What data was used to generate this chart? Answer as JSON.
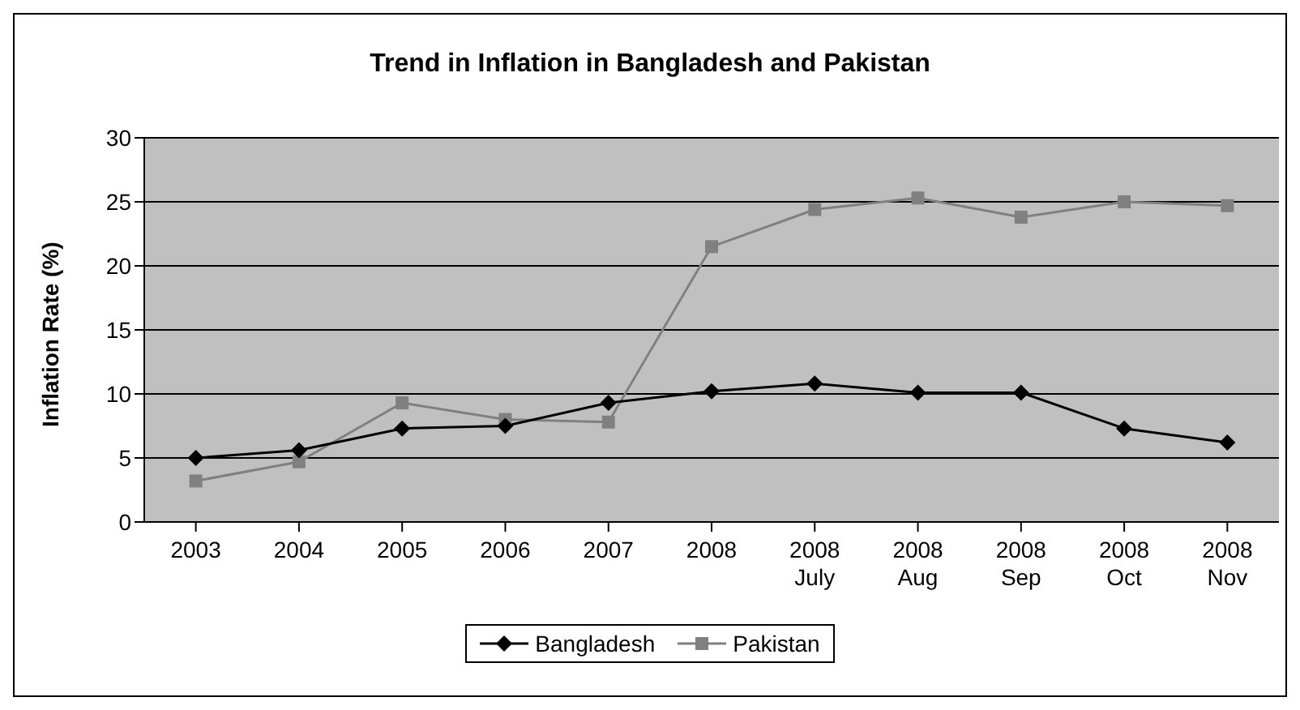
{
  "chart_data": {
    "type": "line",
    "title": "Trend in Inflation in Bangladesh and Pakistan",
    "ylabel": "Inflation Rate (%)",
    "categories": [
      "2003",
      "2004",
      "2005",
      "2006",
      "2007",
      "2008",
      "2008 July",
      "2008 Aug",
      "2008 Sep",
      "2008 Oct",
      "2008 Nov"
    ],
    "series": [
      {
        "name": "Bangladesh",
        "color": "#000000",
        "marker": "diamond",
        "values": [
          5.0,
          5.6,
          7.3,
          7.5,
          9.3,
          10.2,
          10.8,
          10.1,
          10.1,
          7.3,
          6.2
        ]
      },
      {
        "name": "Pakistan",
        "color": "#808080",
        "marker": "square",
        "values": [
          3.2,
          4.7,
          9.3,
          8.0,
          7.8,
          21.5,
          24.4,
          25.3,
          23.8,
          25.0,
          24.7
        ]
      }
    ],
    "ylim": [
      0,
      30
    ],
    "yticks": [
      0,
      5,
      10,
      15,
      20,
      25,
      30
    ],
    "grid": "y",
    "legend": "bottom"
  }
}
